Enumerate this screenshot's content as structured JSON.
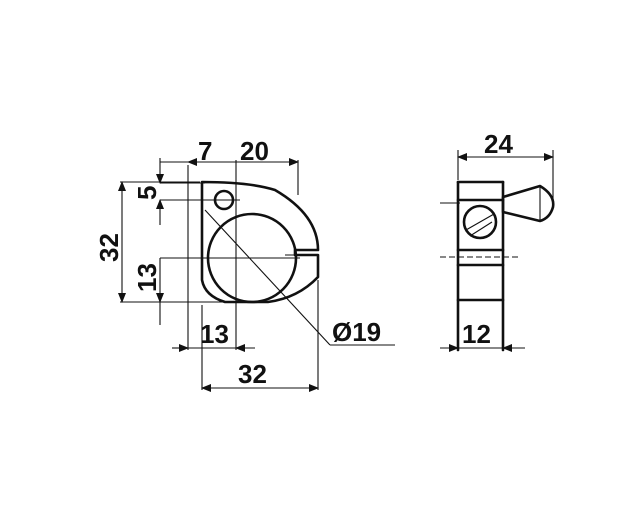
{
  "drawing": {
    "front_view": {
      "dim_top_left": "7",
      "dim_top_right": "20",
      "dim_left_small": "5",
      "dim_left_total": "32",
      "dim_left_lower": "13",
      "dim_bottom_inner": "13",
      "dim_bottom_total": "32",
      "dim_diameter": "Ø19"
    },
    "side_view": {
      "dim_top": "24",
      "dim_bottom": "12"
    }
  }
}
